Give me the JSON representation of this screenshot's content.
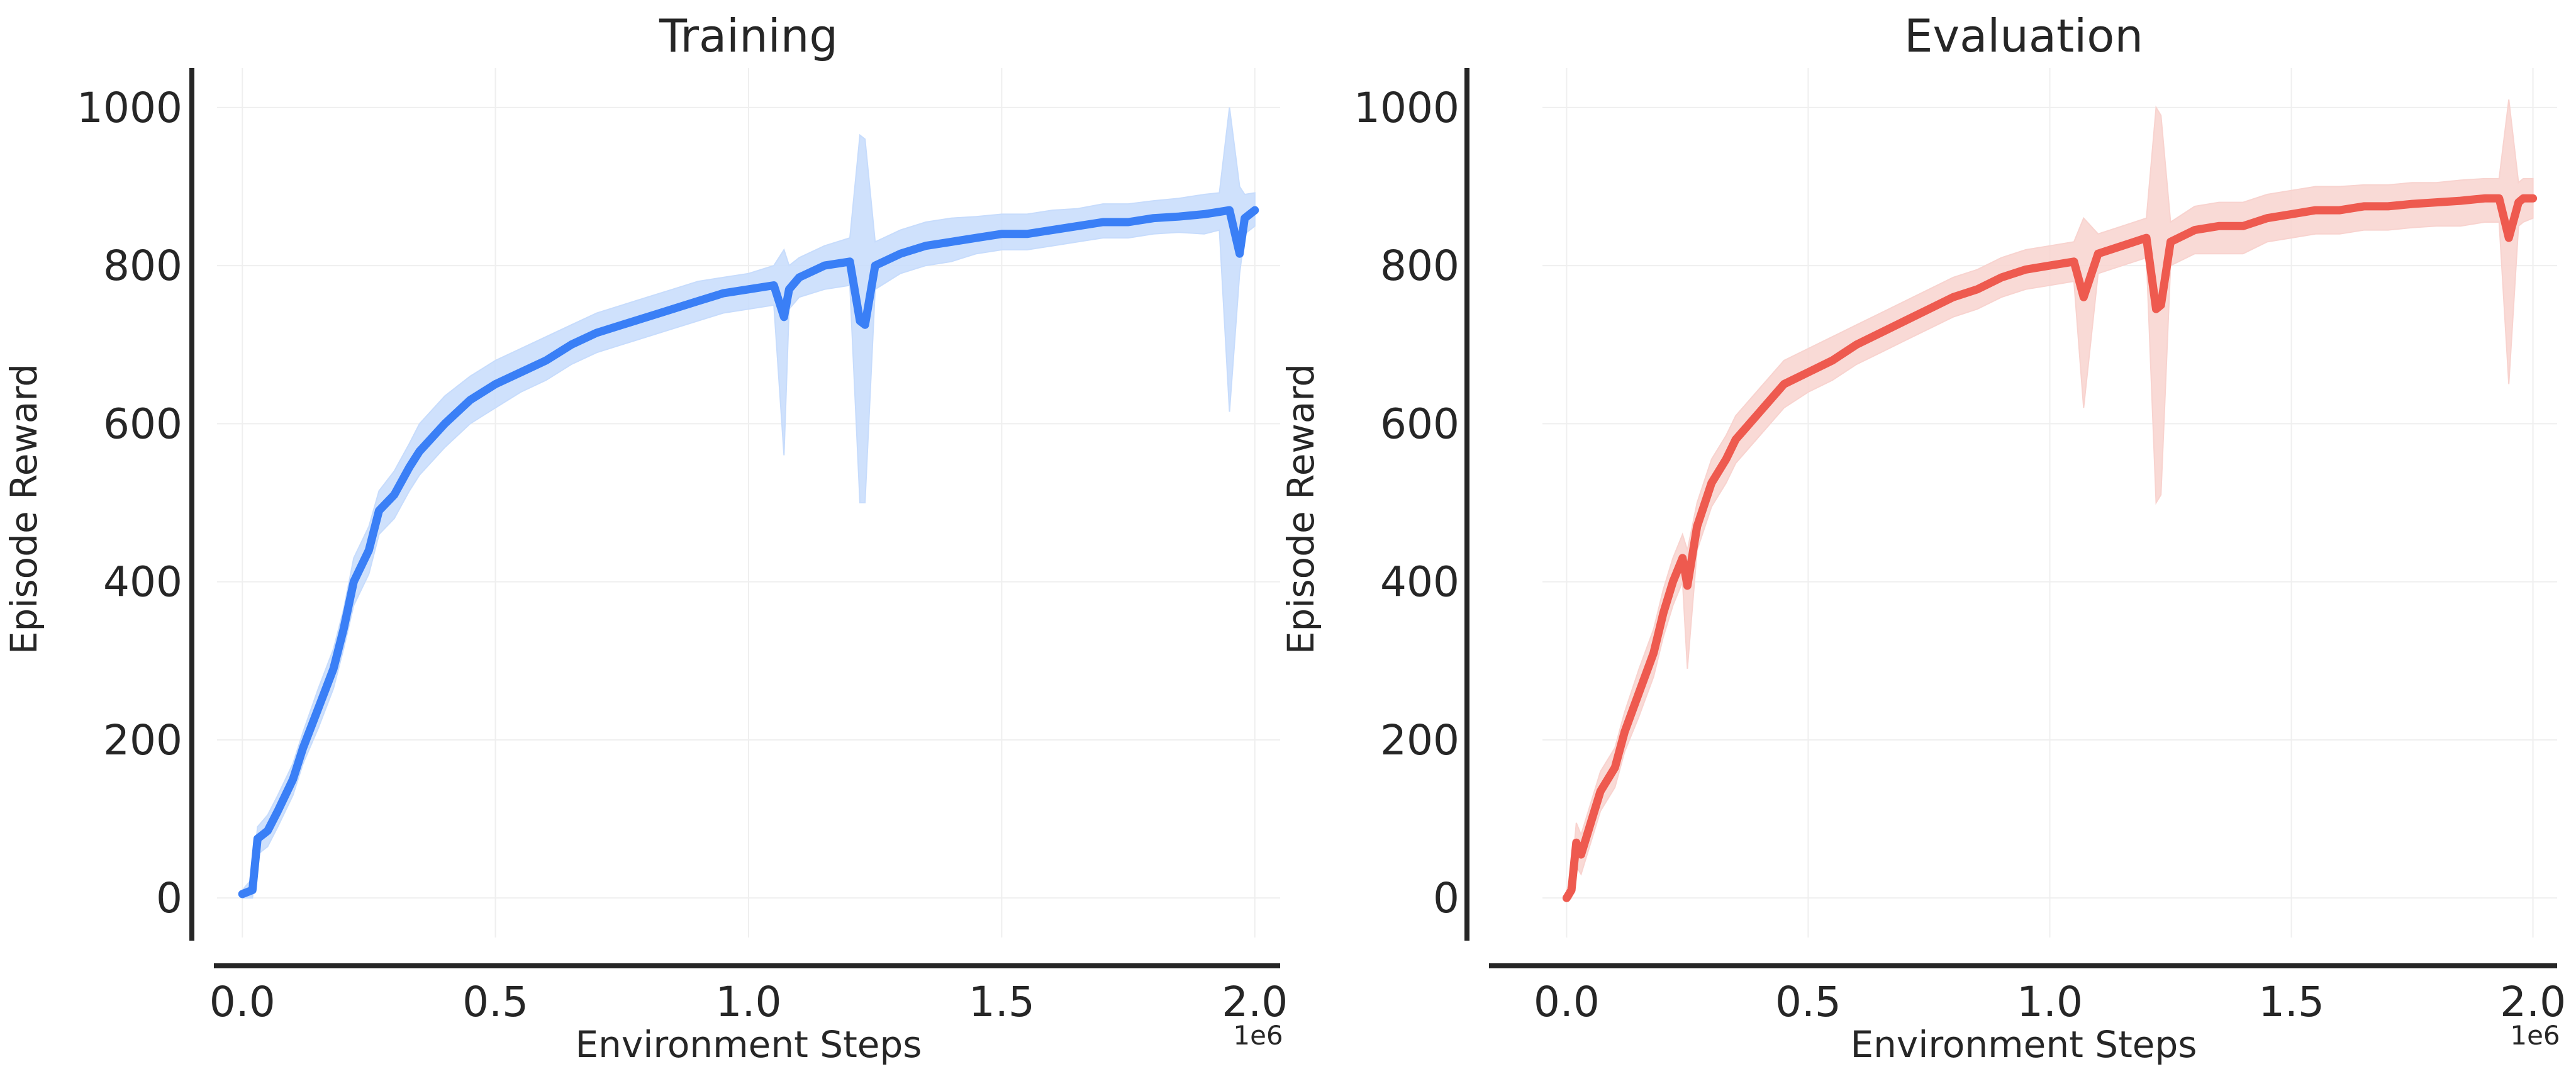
{
  "colors": {
    "training_line": "#3a7ff6",
    "training_band": "#c7dcfc",
    "evaluation_line": "#ee5a4f",
    "evaluation_band": "#f8d3cf",
    "grid": "#efefef",
    "axis": "#262626"
  },
  "chart_data": [
    {
      "type": "line",
      "title": "Training",
      "xlabel": "Environment Steps",
      "ylabel": "Episode Reward",
      "x_offset_label": "1e6",
      "xlim": [
        -0.05,
        2.05
      ],
      "ylim": [
        -50,
        1050
      ],
      "xticks": [
        0.0,
        0.5,
        1.0,
        1.5,
        2.0
      ],
      "xtick_labels": [
        "0.0",
        "0.5",
        "1.0",
        "1.5",
        "2.0"
      ],
      "yticks": [
        0,
        200,
        400,
        600,
        800,
        1000
      ],
      "ytick_labels": [
        "0",
        "200",
        "400",
        "600",
        "800",
        "1000"
      ],
      "grid": true,
      "series": [
        {
          "color_key": "training",
          "x": [
            0.0,
            0.02,
            0.03,
            0.05,
            0.07,
            0.1,
            0.12,
            0.15,
            0.18,
            0.2,
            0.22,
            0.25,
            0.27,
            0.3,
            0.33,
            0.35,
            0.4,
            0.45,
            0.5,
            0.55,
            0.6,
            0.65,
            0.7,
            0.75,
            0.8,
            0.85,
            0.9,
            0.95,
            1.0,
            1.05,
            1.07,
            1.08,
            1.1,
            1.15,
            1.2,
            1.22,
            1.23,
            1.25,
            1.3,
            1.35,
            1.4,
            1.45,
            1.5,
            1.55,
            1.6,
            1.65,
            1.7,
            1.75,
            1.8,
            1.85,
            1.9,
            1.93,
            1.95,
            1.97,
            1.98,
            2.0
          ],
          "y": [
            5,
            10,
            75,
            85,
            110,
            150,
            190,
            240,
            290,
            340,
            400,
            440,
            490,
            510,
            545,
            565,
            600,
            630,
            650,
            665,
            680,
            700,
            715,
            725,
            735,
            745,
            755,
            765,
            770,
            775,
            735,
            770,
            785,
            800,
            805,
            730,
            725,
            800,
            815,
            825,
            830,
            835,
            840,
            840,
            845,
            850,
            855,
            855,
            860,
            862,
            865,
            868,
            870,
            815,
            860,
            870
          ],
          "lower": [
            0,
            0,
            55,
            65,
            90,
            130,
            170,
            215,
            265,
            315,
            370,
            410,
            460,
            480,
            515,
            535,
            570,
            600,
            620,
            640,
            655,
            675,
            690,
            700,
            710,
            720,
            730,
            740,
            745,
            750,
            560,
            745,
            760,
            770,
            775,
            500,
            500,
            770,
            790,
            800,
            805,
            815,
            820,
            820,
            825,
            830,
            835,
            835,
            840,
            842,
            840,
            845,
            615,
            790,
            840,
            850
          ],
          "upper": [
            10,
            25,
            90,
            105,
            130,
            170,
            210,
            265,
            315,
            365,
            430,
            470,
            515,
            540,
            575,
            600,
            635,
            660,
            680,
            695,
            710,
            725,
            740,
            750,
            760,
            770,
            780,
            785,
            790,
            800,
            820,
            800,
            810,
            825,
            835,
            965,
            960,
            830,
            845,
            855,
            860,
            862,
            865,
            865,
            870,
            872,
            878,
            878,
            882,
            885,
            890,
            892,
            1000,
            900,
            890,
            892
          ]
        }
      ]
    },
    {
      "type": "line",
      "title": "Evaluation",
      "xlabel": "Environment Steps",
      "ylabel": "Episode Reward",
      "x_offset_label": "1e6",
      "xlim": [
        -0.05,
        2.05
      ],
      "ylim": [
        -50,
        1050
      ],
      "xticks": [
        0.0,
        0.5,
        1.0,
        1.5,
        2.0
      ],
      "xtick_labels": [
        "0.0",
        "0.5",
        "1.0",
        "1.5",
        "2.0"
      ],
      "yticks": [
        0,
        200,
        400,
        600,
        800,
        1000
      ],
      "ytick_labels": [
        "0",
        "200",
        "400",
        "600",
        "800",
        "1000"
      ],
      "grid": true,
      "series": [
        {
          "color_key": "evaluation",
          "x": [
            0.0,
            0.01,
            0.02,
            0.03,
            0.05,
            0.07,
            0.1,
            0.12,
            0.15,
            0.18,
            0.2,
            0.22,
            0.24,
            0.25,
            0.27,
            0.3,
            0.33,
            0.35,
            0.4,
            0.45,
            0.5,
            0.55,
            0.6,
            0.65,
            0.7,
            0.75,
            0.8,
            0.85,
            0.9,
            0.95,
            1.0,
            1.05,
            1.07,
            1.1,
            1.15,
            1.2,
            1.22,
            1.23,
            1.25,
            1.3,
            1.35,
            1.4,
            1.45,
            1.5,
            1.55,
            1.6,
            1.65,
            1.7,
            1.75,
            1.8,
            1.85,
            1.9,
            1.93,
            1.95,
            1.97,
            1.98,
            2.0
          ],
          "y": [
            0,
            10,
            70,
            55,
            95,
            135,
            165,
            210,
            260,
            310,
            360,
            400,
            430,
            395,
            470,
            525,
            555,
            580,
            615,
            650,
            665,
            680,
            700,
            715,
            730,
            745,
            760,
            770,
            785,
            795,
            800,
            805,
            760,
            815,
            825,
            835,
            745,
            750,
            830,
            845,
            850,
            850,
            860,
            865,
            870,
            870,
            875,
            875,
            878,
            880,
            882,
            885,
            885,
            835,
            880,
            885,
            885
          ],
          "lower": [
            0,
            0,
            40,
            30,
            70,
            110,
            140,
            185,
            230,
            280,
            330,
            370,
            400,
            290,
            440,
            495,
            525,
            550,
            585,
            620,
            640,
            655,
            675,
            690,
            705,
            720,
            735,
            745,
            760,
            770,
            775,
            780,
            620,
            790,
            800,
            810,
            500,
            510,
            800,
            815,
            815,
            815,
            830,
            835,
            840,
            840,
            845,
            845,
            848,
            850,
            850,
            855,
            855,
            650,
            850,
            855,
            860
          ],
          "upper": [
            10,
            25,
            95,
            80,
            120,
            160,
            190,
            235,
            290,
            340,
            390,
            430,
            460,
            440,
            500,
            555,
            585,
            610,
            645,
            680,
            695,
            710,
            725,
            740,
            755,
            770,
            785,
            795,
            810,
            820,
            825,
            830,
            860,
            840,
            850,
            860,
            1000,
            990,
            855,
            875,
            880,
            880,
            890,
            895,
            900,
            900,
            902,
            902,
            905,
            905,
            908,
            910,
            910,
            1010,
            905,
            910,
            910
          ]
        }
      ]
    }
  ]
}
